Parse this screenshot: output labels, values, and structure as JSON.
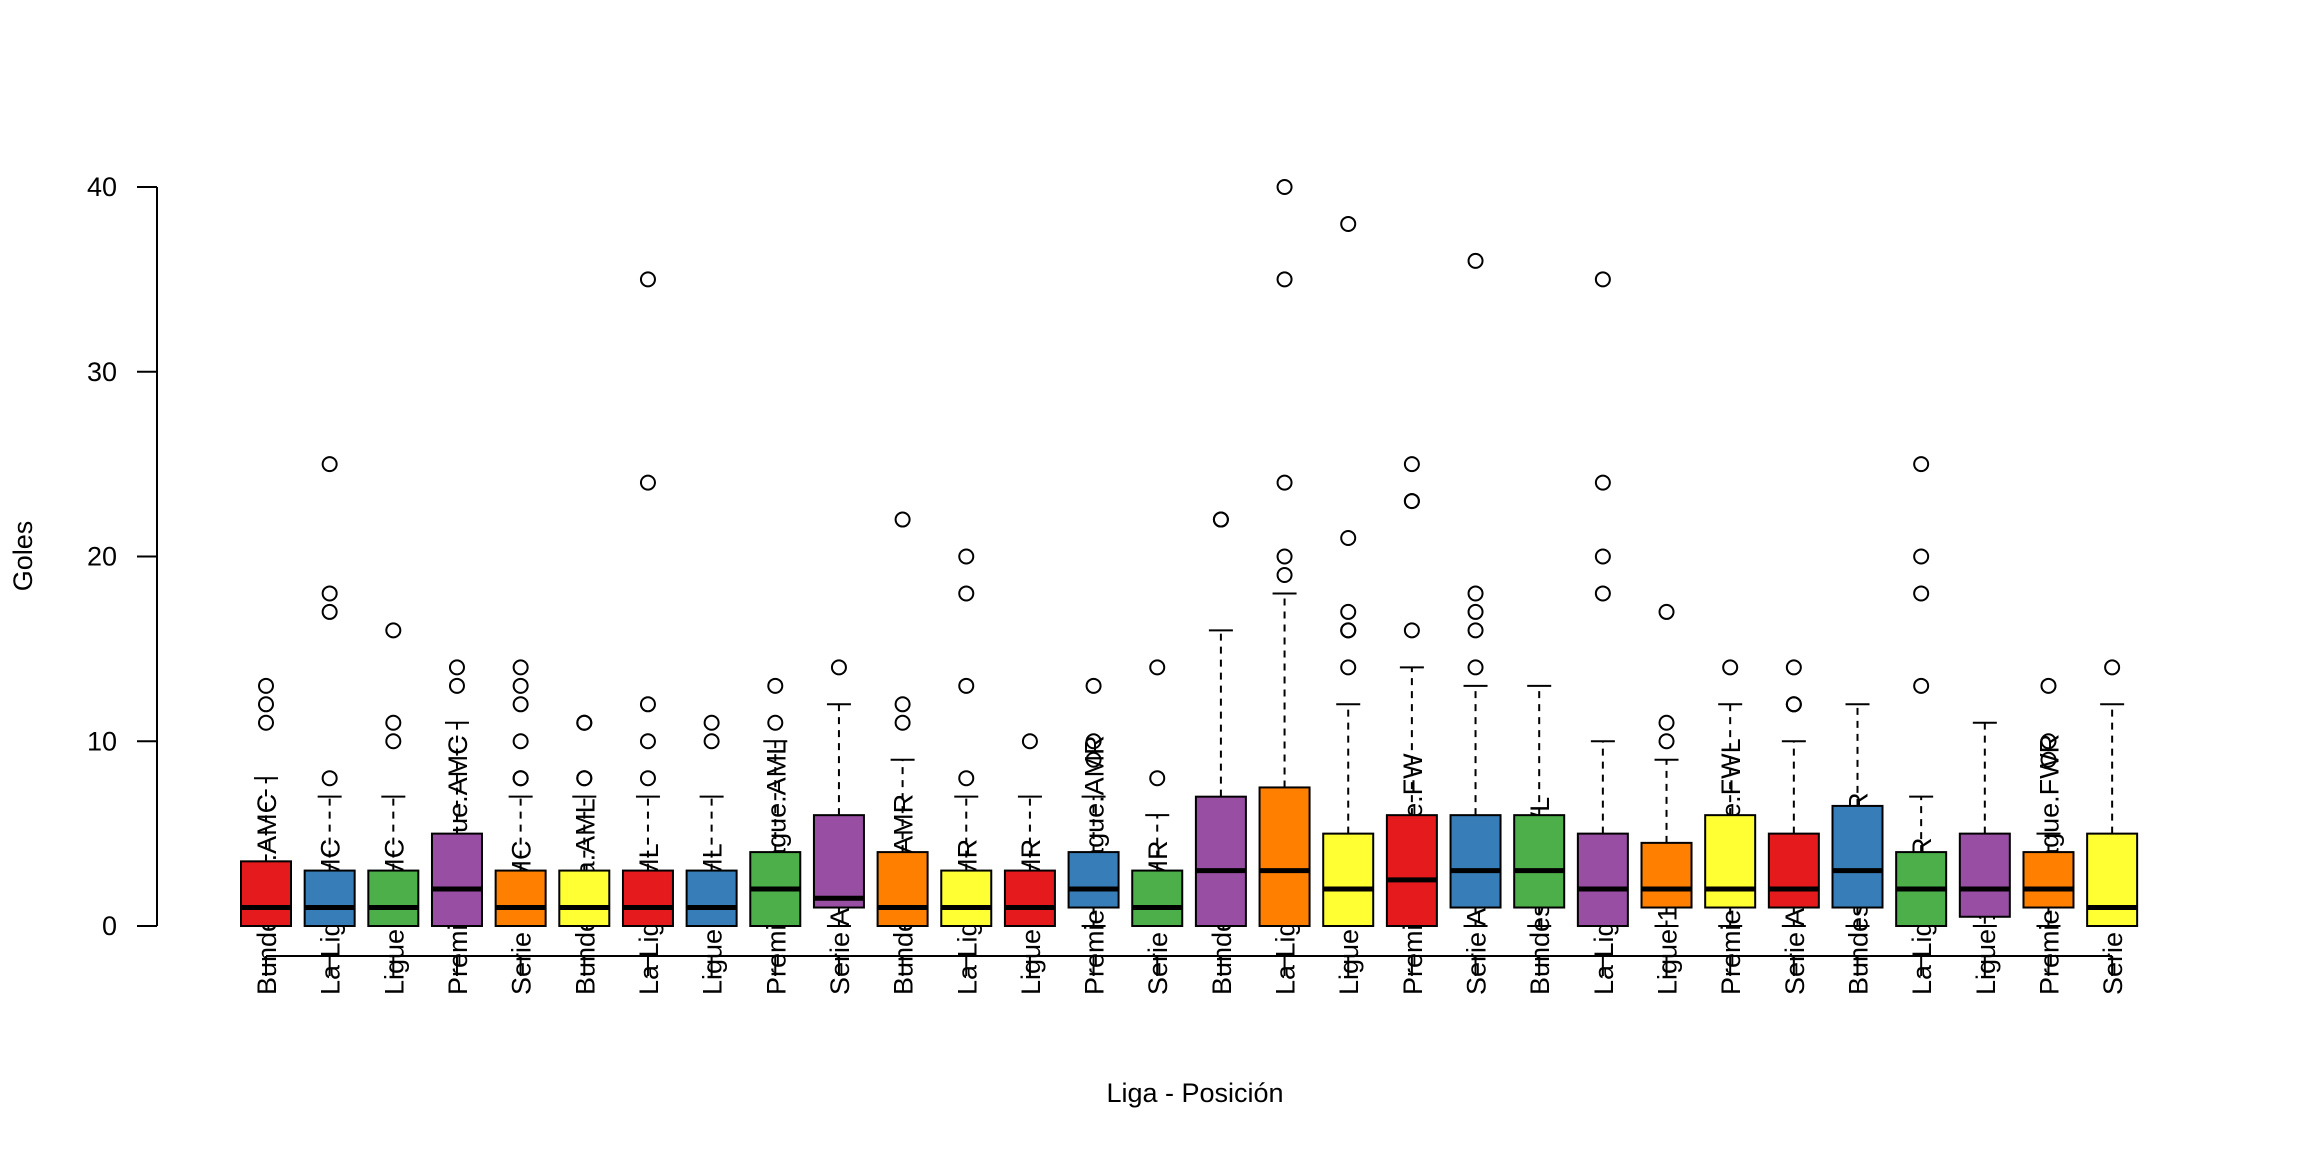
{
  "chart_data": {
    "type": "boxplot",
    "title": "",
    "xlabel": "Liga - Posición",
    "ylabel": "Goles",
    "ylim": [
      0,
      40
    ],
    "yticks": [
      0,
      10,
      20,
      30,
      40
    ],
    "grid": false,
    "legend": "none",
    "categories": [
      "Bundesliga.AMC",
      "La Liga.AMC",
      "Ligue 1.AMC",
      "Premier League.AMC",
      "Serie A.AMC",
      "Bundesliga.AML",
      "La Liga.AML",
      "Ligue 1.AML",
      "Premier League.AML",
      "Serie A.AML",
      "Bundesliga.AMR",
      "La Liga.AMR",
      "Ligue 1.AMR",
      "Premier League.AMR",
      "Serie A.AMR",
      "Bundesliga.FW",
      "La Liga.FW",
      "Ligue 1.FW",
      "Premier League.FW",
      "Serie A.FW",
      "Bundesliga.FWL",
      "La Liga.FWL",
      "Ligue 1.FWL",
      "Premier League.FWL",
      "Serie A.FWL",
      "Bundesliga.FWR",
      "La Liga.FWR",
      "Ligue 1.FWR",
      "Premier League.FWR",
      "Serie A.FWR"
    ],
    "colors": [
      "#E41A1C",
      "#377EB8",
      "#4DAF4A",
      "#984EA3",
      "#FF7F00",
      "#FFFF33"
    ],
    "boxes": [
      {
        "min": 0,
        "q1": 0,
        "median": 1,
        "q3": 3.5,
        "max": 8,
        "outliers": [
          11,
          12,
          13
        ]
      },
      {
        "min": 0,
        "q1": 0,
        "median": 1,
        "q3": 3,
        "max": 7,
        "outliers": [
          8,
          17,
          18,
          25
        ]
      },
      {
        "min": 0,
        "q1": 0,
        "median": 1,
        "q3": 3,
        "max": 7,
        "outliers": [
          10,
          11,
          16
        ]
      },
      {
        "min": 0,
        "q1": 0,
        "median": 2,
        "q3": 5,
        "max": 11,
        "outliers": [
          13,
          14
        ]
      },
      {
        "min": 0,
        "q1": 0,
        "median": 1,
        "q3": 3,
        "max": 7,
        "outliers": [
          8,
          8,
          10,
          12,
          13,
          14
        ]
      },
      {
        "min": 0,
        "q1": 0,
        "median": 1,
        "q3": 3,
        "max": 7,
        "outliers": [
          8,
          8,
          11,
          11
        ]
      },
      {
        "min": 0,
        "q1": 0,
        "median": 1,
        "q3": 3,
        "max": 7,
        "outliers": [
          8,
          10,
          12,
          24,
          35
        ]
      },
      {
        "min": 0,
        "q1": 0,
        "median": 1,
        "q3": 3,
        "max": 7,
        "outliers": [
          10,
          11
        ]
      },
      {
        "min": 0,
        "q1": 0,
        "median": 2,
        "q3": 4,
        "max": 10,
        "outliers": [
          11,
          13
        ]
      },
      {
        "min": 0,
        "q1": 1,
        "median": 1.5,
        "q3": 6,
        "max": 12,
        "outliers": [
          14
        ]
      },
      {
        "min": 0,
        "q1": 0,
        "median": 1,
        "q3": 4,
        "max": 9,
        "outliers": [
          11,
          12,
          22
        ]
      },
      {
        "min": 0,
        "q1": 0,
        "median": 1,
        "q3": 3,
        "max": 7,
        "outliers": [
          8,
          13,
          18,
          20
        ]
      },
      {
        "min": 0,
        "q1": 0,
        "median": 1,
        "q3": 3,
        "max": 7,
        "outliers": [
          10
        ]
      },
      {
        "min": 0,
        "q1": 1,
        "median": 2,
        "q3": 4,
        "max": 7,
        "outliers": [
          9,
          10,
          13
        ]
      },
      {
        "min": 0,
        "q1": 0,
        "median": 1,
        "q3": 3,
        "max": 6,
        "outliers": [
          8,
          14
        ]
      },
      {
        "min": 0,
        "q1": 0,
        "median": 3,
        "q3": 7,
        "max": 16,
        "outliers": [
          22,
          22
        ]
      },
      {
        "min": 0,
        "q1": 0,
        "median": 3,
        "q3": 7.5,
        "max": 18,
        "outliers": [
          19,
          20,
          24,
          35,
          40
        ]
      },
      {
        "min": 0,
        "q1": 0,
        "median": 2,
        "q3": 5,
        "max": 12,
        "outliers": [
          14,
          16,
          16,
          17,
          21,
          38
        ]
      },
      {
        "min": 0,
        "q1": 0,
        "median": 2.5,
        "q3": 6,
        "max": 14,
        "outliers": [
          16,
          23,
          23,
          25
        ]
      },
      {
        "min": 0,
        "q1": 1,
        "median": 3,
        "q3": 6,
        "max": 13,
        "outliers": [
          14,
          16,
          17,
          18,
          36
        ]
      },
      {
        "min": 0,
        "q1": 1,
        "median": 3,
        "q3": 6,
        "max": 13,
        "outliers": []
      },
      {
        "min": 0,
        "q1": 0,
        "median": 2,
        "q3": 5,
        "max": 10,
        "outliers": [
          18,
          20,
          24,
          35
        ]
      },
      {
        "min": 0,
        "q1": 1,
        "median": 2,
        "q3": 4.5,
        "max": 9,
        "outliers": [
          10,
          11,
          17
        ]
      },
      {
        "min": 0,
        "q1": 1,
        "median": 2,
        "q3": 6,
        "max": 12,
        "outliers": [
          14
        ]
      },
      {
        "min": 0,
        "q1": 1,
        "median": 2,
        "q3": 5,
        "max": 10,
        "outliers": [
          12,
          12,
          14
        ]
      },
      {
        "min": 0,
        "q1": 1,
        "median": 3,
        "q3": 6.5,
        "max": 12,
        "outliers": []
      },
      {
        "min": 0,
        "q1": 0,
        "median": 2,
        "q3": 4,
        "max": 7,
        "outliers": [
          13,
          18,
          20,
          25
        ]
      },
      {
        "min": 0,
        "q1": 0.5,
        "median": 2,
        "q3": 5,
        "max": 11,
        "outliers": []
      },
      {
        "min": 0,
        "q1": 1,
        "median": 2,
        "q3": 4,
        "max": 5,
        "outliers": [
          9,
          10,
          13
        ]
      },
      {
        "min": 0,
        "q1": 0,
        "median": 1,
        "q3": 5,
        "max": 12,
        "outliers": [
          14
        ]
      }
    ]
  }
}
